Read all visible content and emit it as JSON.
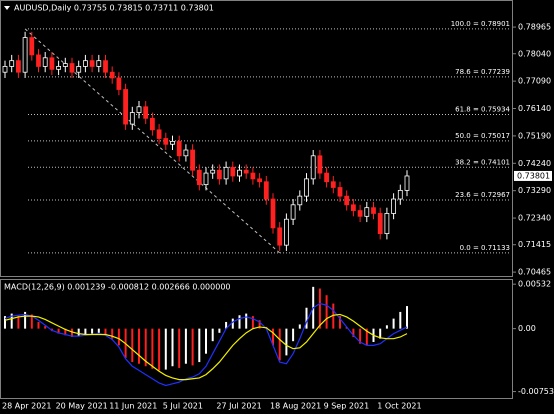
{
  "chart_data": [
    {
      "type": "candlestick",
      "title": "AUDUSD,Daily  0.73755 0.73815 0.73711 0.73801",
      "categories": [
        "28 Apr 2021",
        null,
        null,
        null,
        null,
        null,
        null,
        null,
        "20 May 2021",
        null,
        null,
        null,
        null,
        null,
        null,
        null,
        "11 Jun 2021",
        null,
        null,
        null,
        null,
        null,
        null,
        null,
        "5 Jul 2021",
        null,
        null,
        null,
        null,
        null,
        null,
        null,
        "27 Jul 2021",
        null,
        null,
        null,
        null,
        null,
        null,
        null,
        "18 Aug 2021",
        null,
        null,
        null,
        null,
        null,
        null,
        null,
        "9 Sep 2021",
        null,
        null,
        null,
        null,
        null,
        null,
        null,
        "1 Oct 2021",
        null,
        null,
        null,
        null
      ],
      "open": [
        0.774,
        0.776,
        0.778,
        0.774,
        0.786,
        0.78,
        0.776,
        0.779,
        0.775,
        0.776,
        0.777,
        0.774,
        0.776,
        0.778,
        0.776,
        0.778,
        0.774,
        0.772,
        0.768,
        0.756,
        0.76,
        0.762,
        0.758,
        0.754,
        0.751,
        0.749,
        0.75,
        0.745,
        0.747,
        0.74,
        0.735,
        0.739,
        0.74,
        0.737,
        0.741,
        0.738,
        0.74,
        0.739,
        0.737,
        0.736,
        0.73,
        0.72,
        0.714,
        0.723,
        0.728,
        0.731,
        0.737,
        0.745,
        0.739,
        0.736,
        0.734,
        0.731,
        0.728,
        0.726,
        0.724,
        0.727,
        0.725,
        0.718,
        0.725,
        0.73,
        0.733
      ],
      "high": [
        0.778,
        0.78,
        0.78,
        0.788,
        0.788,
        0.782,
        0.781,
        0.781,
        0.778,
        0.779,
        0.779,
        0.778,
        0.78,
        0.78,
        0.78,
        0.78,
        0.776,
        0.774,
        0.77,
        0.762,
        0.764,
        0.764,
        0.76,
        0.756,
        0.753,
        0.752,
        0.752,
        0.749,
        0.749,
        0.742,
        0.741,
        0.742,
        0.742,
        0.743,
        0.743,
        0.742,
        0.742,
        0.741,
        0.739,
        0.738,
        0.732,
        0.722,
        0.725,
        0.73,
        0.733,
        0.739,
        0.747,
        0.747,
        0.741,
        0.738,
        0.736,
        0.733,
        0.73,
        0.728,
        0.729,
        0.729,
        0.727,
        0.727,
        0.732,
        0.735,
        0.74
      ],
      "low": [
        0.772,
        0.774,
        0.772,
        0.772,
        0.778,
        0.774,
        0.774,
        0.773,
        0.773,
        0.774,
        0.772,
        0.772,
        0.774,
        0.774,
        0.774,
        0.772,
        0.77,
        0.766,
        0.754,
        0.754,
        0.758,
        0.756,
        0.752,
        0.749,
        0.747,
        0.747,
        0.743,
        0.743,
        0.738,
        0.733,
        0.733,
        0.737,
        0.735,
        0.735,
        0.736,
        0.736,
        0.737,
        0.735,
        0.734,
        0.728,
        0.718,
        0.712,
        0.712,
        0.721,
        0.726,
        0.729,
        0.735,
        0.737,
        0.734,
        0.732,
        0.729,
        0.726,
        0.724,
        0.722,
        0.722,
        0.723,
        0.716,
        0.716,
        0.723,
        0.728,
        0.731
      ],
      "close": [
        0.776,
        0.778,
        0.774,
        0.786,
        0.78,
        0.776,
        0.779,
        0.775,
        0.776,
        0.777,
        0.774,
        0.776,
        0.778,
        0.776,
        0.778,
        0.774,
        0.772,
        0.768,
        0.756,
        0.76,
        0.762,
        0.758,
        0.754,
        0.751,
        0.749,
        0.75,
        0.745,
        0.747,
        0.74,
        0.735,
        0.739,
        0.74,
        0.737,
        0.741,
        0.738,
        0.74,
        0.739,
        0.737,
        0.736,
        0.73,
        0.72,
        0.714,
        0.723,
        0.728,
        0.731,
        0.737,
        0.745,
        0.739,
        0.736,
        0.734,
        0.731,
        0.728,
        0.726,
        0.724,
        0.727,
        0.725,
        0.718,
        0.725,
        0.73,
        0.733,
        0.738
      ],
      "up_color": "#ffffff",
      "down_color": "#ff2020",
      "ylim": [
        0.7033,
        0.7987
      ],
      "yticks": [
        0.78965,
        {
          "value": 0.7804,
          "label": "0.78040"
        },
        {
          "value": 0.7709,
          "label": "0.77090"
        },
        {
          "value": 0.7614,
          "label": "0.76140"
        },
        {
          "value": 0.7519,
          "label": "0.75190"
        },
        {
          "value": 0.7424,
          "label": "0.74240"
        },
        {
          "value": 0.7329,
          "label": "0.73290"
        },
        {
          "value": 0.7234,
          "label": "0.72340"
        },
        0.71415,
        0.70465
      ],
      "fib_levels": [
        {
          "value": 0.78901,
          "label": "100.0 = 0.78901"
        },
        {
          "value": 0.77239,
          "label": "78.6 = 0.77239"
        },
        {
          "value": 0.75934,
          "label": "61.8 = 0.75934"
        },
        {
          "value": 0.75017,
          "label": "50.0 = 0.75017"
        },
        {
          "value": 0.74101,
          "label": "38.2 = 0.74101"
        },
        {
          "value": 0.72967,
          "label": "23.6 = 0.72967"
        },
        {
          "value": 0.71133,
          "label": "0.0 = 0.71133"
        }
      ],
      "last_price": 0.73801
    },
    {
      "type": "macd",
      "title": "MACD(12,26,9) 0.001239 -0.000812 0.002666 0.000000",
      "values": [
        0.0015,
        0.0018,
        0.0016,
        0.002,
        0.0017,
        0.0008,
        0.0003,
        -0.0003,
        -0.0006,
        -0.0008,
        -0.001,
        -0.0009,
        -0.0007,
        -0.0006,
        -0.0005,
        -0.0008,
        -0.0012,
        -0.002,
        -0.0035,
        -0.004,
        -0.0042,
        -0.0045,
        -0.0048,
        -0.005,
        -0.0049,
        -0.0045,
        -0.0047,
        -0.0042,
        -0.0044,
        -0.004,
        -0.003,
        -0.0015,
        -0.0005,
        0.0008,
        0.0012,
        0.0016,
        0.0018,
        0.0015,
        0.001,
        0.0002,
        -0.002,
        -0.0038,
        -0.0032,
        -0.0015,
        0.0005,
        0.0025,
        0.005,
        0.0048,
        0.004,
        0.003,
        0.0015,
        0.0002,
        -0.001,
        -0.0018,
        -0.002,
        -0.0016,
        -0.0012,
        0.0004,
        0.0012,
        0.002,
        0.0027
      ],
      "up_color": "#ffffff",
      "down_color": "#ff2020",
      "series": [
        {
          "color": "#2030ff",
          "values": [
            0.0012,
            0.0015,
            0.0016,
            0.0017,
            0.0015,
            0.001,
            0.0004,
            -0.0002,
            -0.0005,
            -0.0007,
            -0.0009,
            -0.0009,
            -0.0008,
            -0.0007,
            -0.0006,
            -0.0008,
            -0.0013,
            -0.0022,
            -0.0036,
            -0.0045,
            -0.005,
            -0.0055,
            -0.006,
            -0.0065,
            -0.0068,
            -0.0066,
            -0.0064,
            -0.006,
            -0.0058,
            -0.0054,
            -0.0045,
            -0.003,
            -0.0015,
            0.0,
            0.0008,
            0.0012,
            0.0014,
            0.0012,
            0.0008,
            0.0,
            -0.002,
            -0.004,
            -0.0042,
            -0.003,
            -0.0012,
            0.0008,
            0.0025,
            0.003,
            0.0028,
            0.0022,
            0.0012,
            0.0002,
            -0.0008,
            -0.0016,
            -0.002,
            -0.002,
            -0.0018,
            -0.0012,
            -0.0006,
            -0.0002,
            0.0002
          ]
        },
        {
          "color": "#f0f000",
          "values": [
            0.001,
            0.0012,
            0.0014,
            0.0015,
            0.0015,
            0.0014,
            0.0011,
            0.0007,
            0.0003,
            -0.0001,
            -0.0004,
            -0.0006,
            -0.0007,
            -0.0007,
            -0.0007,
            -0.0007,
            -0.0009,
            -0.0012,
            -0.0018,
            -0.0025,
            -0.0032,
            -0.0039,
            -0.0045,
            -0.0051,
            -0.0056,
            -0.0059,
            -0.0061,
            -0.0061,
            -0.006,
            -0.0059,
            -0.0055,
            -0.0048,
            -0.004,
            -0.003,
            -0.002,
            -0.0012,
            -0.0005,
            0.0,
            0.0002,
            0.0001,
            -0.0005,
            -0.0013,
            -0.002,
            -0.0024,
            -0.0023,
            -0.0016,
            -0.0006,
            0.0004,
            0.0012,
            0.0016,
            0.0017,
            0.0014,
            0.0009,
            0.0003,
            -0.0003,
            -0.0008,
            -0.0011,
            -0.0012,
            -0.0012,
            -0.001,
            -0.0006
          ]
        }
      ],
      "ylim": [
        -0.0083,
        0.0057
      ],
      "yticks": [
        0.00532,
        {
          "value": 0,
          "label": "0.00"
        },
        -0.00753
      ]
    }
  ]
}
